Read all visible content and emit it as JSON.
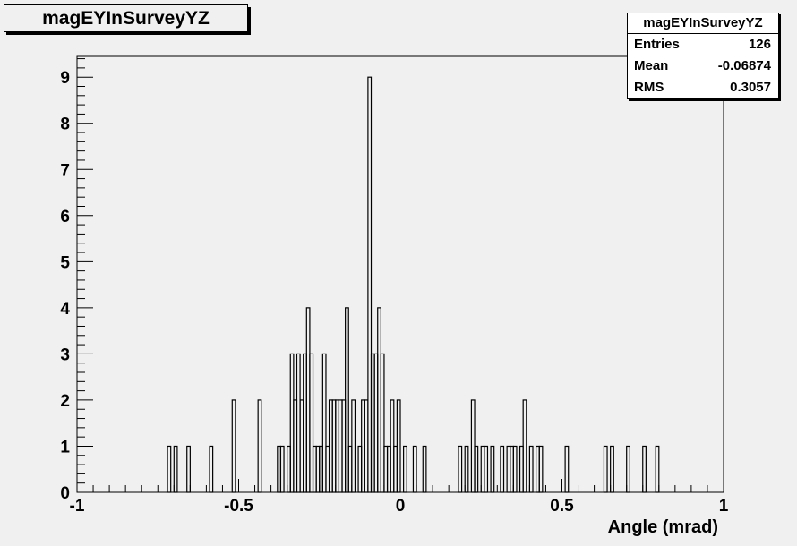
{
  "chart_data": {
    "type": "histogram",
    "title": "magEYInSurveyYZ",
    "xlabel": "Angle (mrad)",
    "ylabel": "",
    "xlim": [
      -1,
      1
    ],
    "ylim": [
      0,
      9.45
    ],
    "bin_width": 0.01,
    "x_ticks": [
      -1,
      -0.5,
      0,
      0.5,
      1
    ],
    "x_tick_labels": [
      "-1",
      "-0.5",
      "0",
      "0.5",
      "1"
    ],
    "y_ticks": [
      0,
      1,
      2,
      3,
      4,
      5,
      6,
      7,
      8,
      9
    ],
    "y_tick_labels": [
      "0",
      "1",
      "2",
      "3",
      "4",
      "5",
      "6",
      "7",
      "8",
      "9"
    ],
    "stats": {
      "name": "magEYInSurveyYZ",
      "entries_label": "Entries",
      "entries": "126",
      "mean_label": "Mean",
      "mean": "-0.06874",
      "rms_label": "RMS",
      "rms": "0.3057"
    },
    "bins": [
      {
        "x": -0.715,
        "y": 1
      },
      {
        "x": -0.695,
        "y": 1
      },
      {
        "x": -0.655,
        "y": 1
      },
      {
        "x": -0.585,
        "y": 1
      },
      {
        "x": -0.515,
        "y": 2
      },
      {
        "x": -0.435,
        "y": 2
      },
      {
        "x": -0.375,
        "y": 1
      },
      {
        "x": -0.365,
        "y": 1
      },
      {
        "x": -0.345,
        "y": 1
      },
      {
        "x": -0.335,
        "y": 3
      },
      {
        "x": -0.325,
        "y": 2
      },
      {
        "x": -0.315,
        "y": 3
      },
      {
        "x": -0.305,
        "y": 2
      },
      {
        "x": -0.295,
        "y": 3
      },
      {
        "x": -0.285,
        "y": 4
      },
      {
        "x": -0.275,
        "y": 3
      },
      {
        "x": -0.265,
        "y": 1
      },
      {
        "x": -0.255,
        "y": 1
      },
      {
        "x": -0.245,
        "y": 1
      },
      {
        "x": -0.235,
        "y": 3
      },
      {
        "x": -0.225,
        "y": 1
      },
      {
        "x": -0.215,
        "y": 2
      },
      {
        "x": -0.205,
        "y": 2
      },
      {
        "x": -0.195,
        "y": 2
      },
      {
        "x": -0.185,
        "y": 2
      },
      {
        "x": -0.175,
        "y": 2
      },
      {
        "x": -0.165,
        "y": 4
      },
      {
        "x": -0.155,
        "y": 1
      },
      {
        "x": -0.145,
        "y": 2
      },
      {
        "x": -0.125,
        "y": 1
      },
      {
        "x": -0.115,
        "y": 2
      },
      {
        "x": -0.105,
        "y": 2
      },
      {
        "x": -0.095,
        "y": 9
      },
      {
        "x": -0.085,
        "y": 3
      },
      {
        "x": -0.075,
        "y": 3
      },
      {
        "x": -0.065,
        "y": 4
      },
      {
        "x": -0.055,
        "y": 3
      },
      {
        "x": -0.045,
        "y": 1
      },
      {
        "x": -0.035,
        "y": 1
      },
      {
        "x": -0.025,
        "y": 2
      },
      {
        "x": -0.015,
        "y": 1
      },
      {
        "x": -0.005,
        "y": 2
      },
      {
        "x": 0.015,
        "y": 1
      },
      {
        "x": 0.045,
        "y": 1
      },
      {
        "x": 0.075,
        "y": 1
      },
      {
        "x": 0.185,
        "y": 1
      },
      {
        "x": 0.205,
        "y": 1
      },
      {
        "x": 0.225,
        "y": 2
      },
      {
        "x": 0.235,
        "y": 1
      },
      {
        "x": 0.255,
        "y": 1
      },
      {
        "x": 0.265,
        "y": 1
      },
      {
        "x": 0.285,
        "y": 1
      },
      {
        "x": 0.315,
        "y": 1
      },
      {
        "x": 0.335,
        "y": 1
      },
      {
        "x": 0.345,
        "y": 1
      },
      {
        "x": 0.355,
        "y": 1
      },
      {
        "x": 0.375,
        "y": 1
      },
      {
        "x": 0.385,
        "y": 2
      },
      {
        "x": 0.405,
        "y": 1
      },
      {
        "x": 0.425,
        "y": 1
      },
      {
        "x": 0.435,
        "y": 1
      },
      {
        "x": 0.515,
        "y": 1
      },
      {
        "x": 0.635,
        "y": 1
      },
      {
        "x": 0.655,
        "y": 1
      },
      {
        "x": 0.705,
        "y": 1
      },
      {
        "x": 0.755,
        "y": 1
      },
      {
        "x": 0.795,
        "y": 1
      }
    ]
  }
}
